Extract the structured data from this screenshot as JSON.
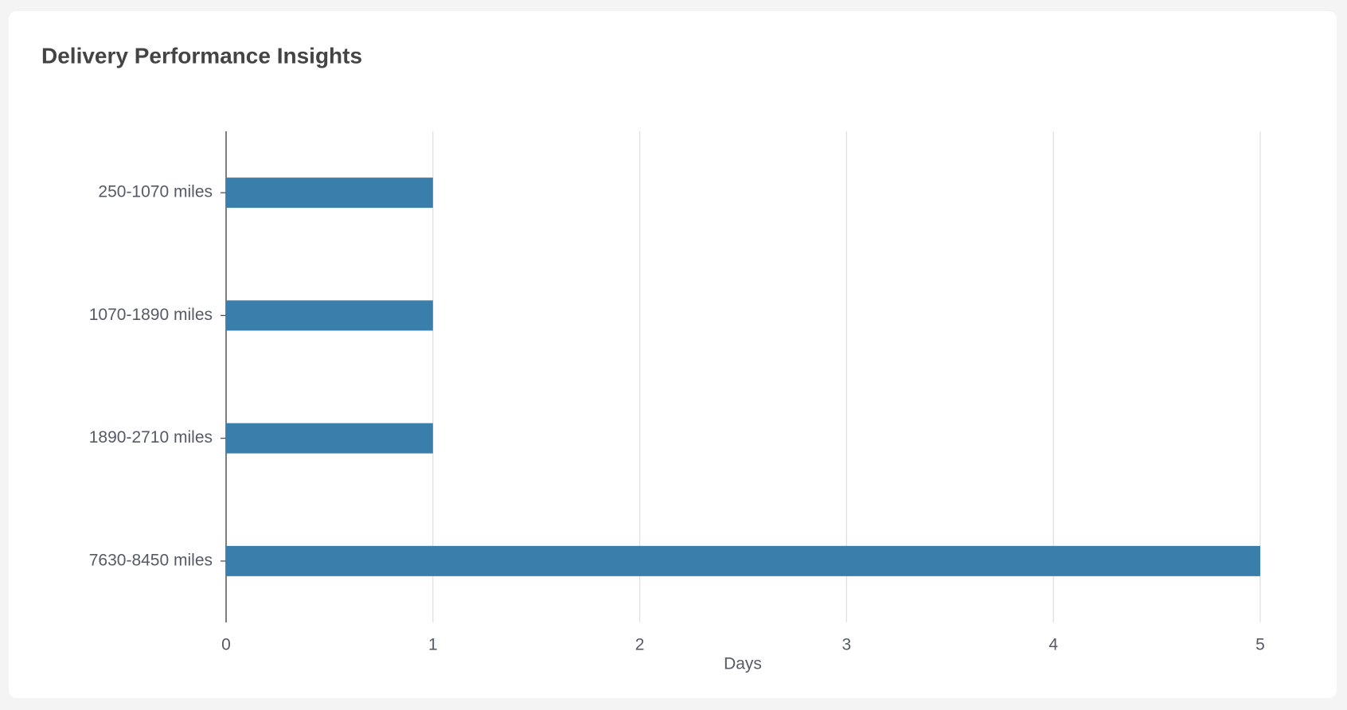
{
  "chart_data": {
    "type": "bar",
    "orientation": "horizontal",
    "title": "Delivery Performance Insights",
    "x_label": "Days",
    "categories": [
      "250-1070 miles",
      "1070-1890 miles",
      "1890-2710 miles",
      "7630-8450 miles"
    ],
    "values": [
      1,
      1,
      1,
      5
    ],
    "color": "#3a7eab",
    "xlim": [
      0,
      5
    ],
    "xticks": [
      0,
      1,
      2,
      3,
      4,
      5
    ],
    "grid": true
  }
}
